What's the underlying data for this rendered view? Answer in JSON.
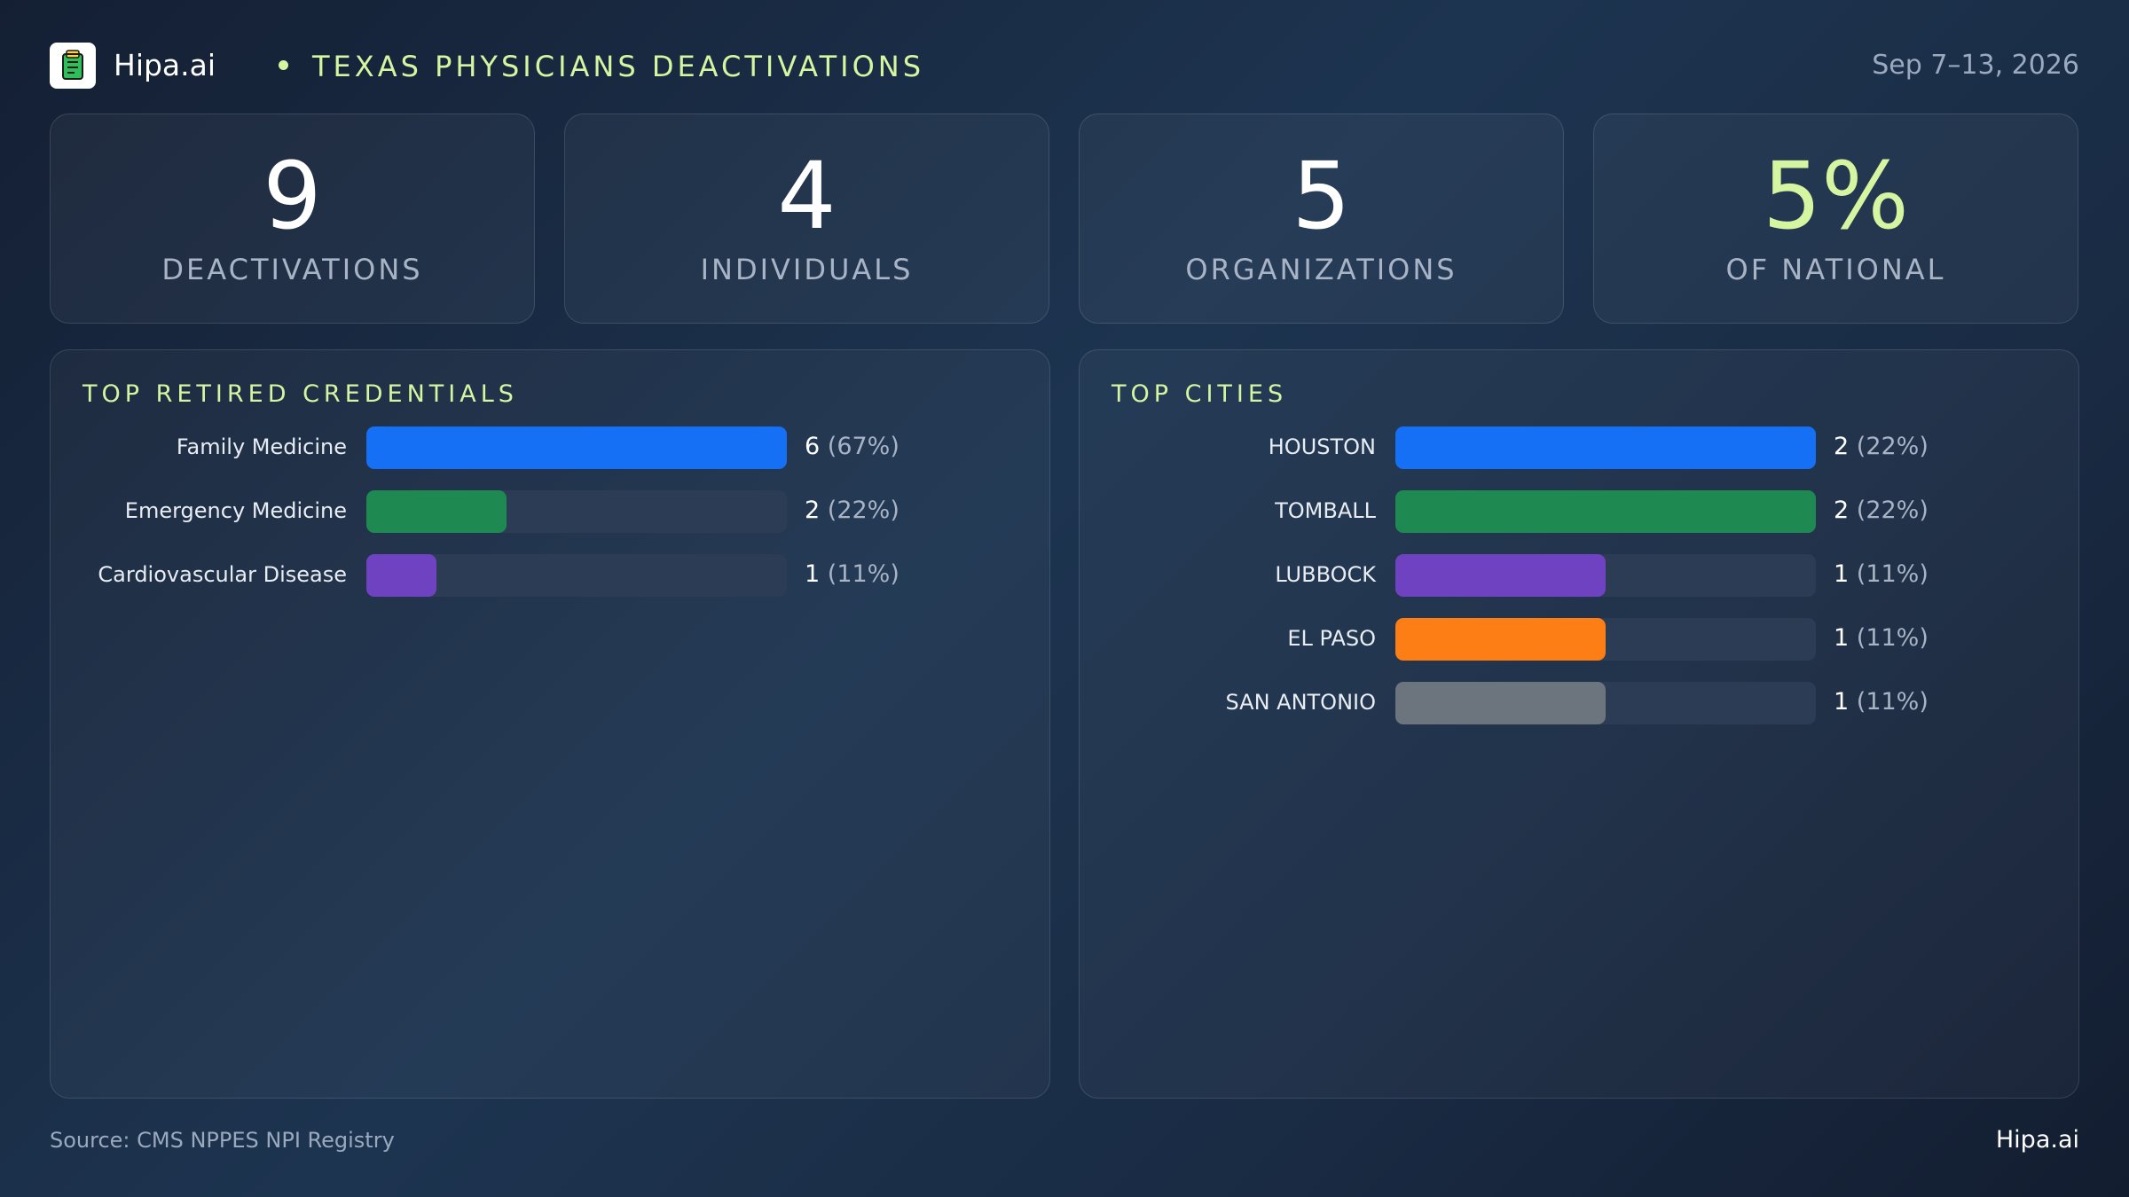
{
  "header": {
    "brand": "Hipa.ai",
    "title": "TEXAS PHYSICIANS DEACTIVATIONS",
    "date_range": "Sep 7–13, 2026",
    "logo_icon": "clipboard-icon"
  },
  "stats": [
    {
      "value": "9",
      "label": "DEACTIVATIONS",
      "color": "#ffffff"
    },
    {
      "value": "4",
      "label": "INDIVIDUALS",
      "color": "#ffffff"
    },
    {
      "value": "5",
      "label": "ORGANIZATIONS",
      "color": "#ffffff"
    },
    {
      "value": "5%",
      "label": "OF NATIONAL",
      "color": "#d6f5a0"
    }
  ],
  "chart_data": [
    {
      "type": "bar",
      "orientation": "horizontal",
      "title": "TOP RETIRED CREDENTIALS",
      "categories": [
        "Family Medicine",
        "Emergency Medicine",
        "Cardiovascular Disease"
      ],
      "values": [
        6,
        2,
        1
      ],
      "value_labels": [
        "6",
        "2",
        "1"
      ],
      "percent_labels": [
        "(67%)",
        "(22%)",
        "(11%)"
      ],
      "xlim": [
        0,
        6
      ],
      "colors": [
        "#1570f5",
        "#1e8a52",
        "#6f42c1"
      ]
    },
    {
      "type": "bar",
      "orientation": "horizontal",
      "title": "TOP CITIES",
      "categories": [
        "HOUSTON",
        "TOMBALL",
        "LUBBOCK",
        "EL PASO",
        "SAN ANTONIO"
      ],
      "values": [
        2,
        2,
        1,
        1,
        1
      ],
      "value_labels": [
        "2",
        "2",
        "1",
        "1",
        "1"
      ],
      "percent_labels": [
        "(22%)",
        "(22%)",
        "(11%)",
        "(11%)",
        "(11%)"
      ],
      "xlim": [
        0,
        2
      ],
      "colors": [
        "#1570f5",
        "#1e8a52",
        "#6f42c1",
        "#fd7e14",
        "#6c757d"
      ]
    }
  ],
  "footer": {
    "source": "Source: CMS NPPES NPI Registry",
    "brand": "Hipa.ai"
  }
}
